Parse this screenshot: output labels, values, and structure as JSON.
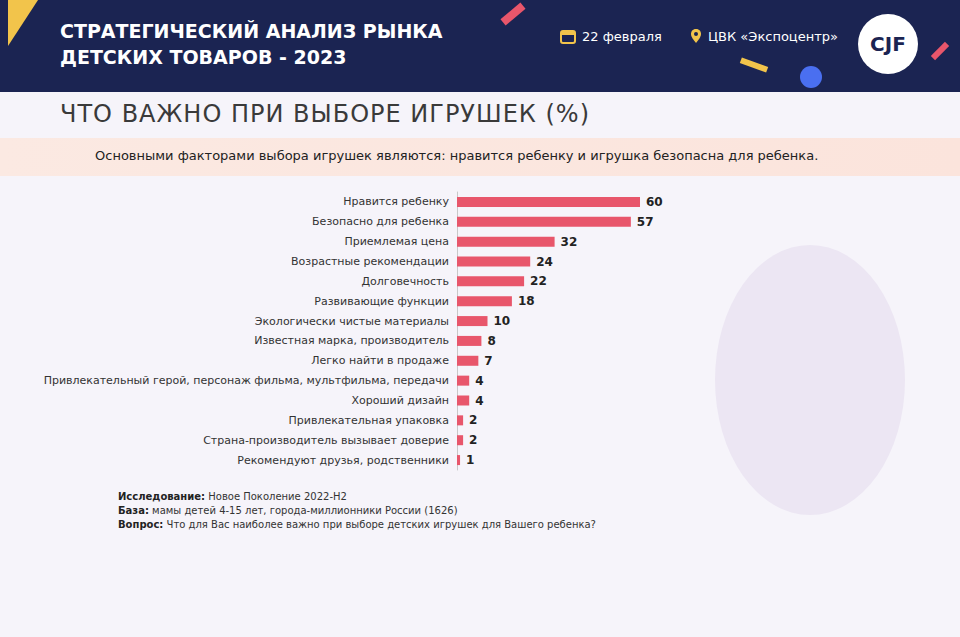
{
  "header": {
    "title": [
      "СТРАТЕГИЧЕСКИЙ АНАЛИЗ РЫНКА",
      "ДЕТСКИХ ТОВАРОВ - 2023"
    ],
    "date": "22 февраля",
    "place": "ЦВК «Экспоцентр»",
    "logo": "CJF"
  },
  "chart_data": {
    "type": "bar",
    "orientation": "horizontal",
    "title": "ЧТО ВАЖНО ПРИ ВЫБОРЕ ИГРУШЕК (%)",
    "subtitle": "Основными факторами выбора игрушек являются: нравится ребенку и игрушка безопасна для ребенка.",
    "categories": [
      "Нравится ребенку",
      "Безопасно для ребенка",
      "Приемлемая цена",
      "Возрастные рекомендации",
      "Долговечность",
      "Развивающие функции",
      "Экологически чистые материалы",
      "Известная марка, производитель",
      "Легко найти в продаже",
      "Привлекательный герой, персонаж фильма, мультфильма, передачи",
      "Хороший дизайн",
      "Привлекательная упаковка",
      "Страна-производитель вызывает доверие",
      "Рекомендуют друзья, родственники"
    ],
    "values": [
      60,
      57,
      32,
      24,
      22,
      18,
      10,
      8,
      7,
      4,
      4,
      2,
      2,
      1
    ],
    "color": "#e8566b",
    "xlim": [
      0,
      60
    ],
    "data_labels": true,
    "tick_labels": "y",
    "grid": false
  },
  "notes": [
    {
      "label": "Исследование:",
      "text": "Новое Поколение 2022-H2"
    },
    {
      "label": "База:",
      "text": "мамы детей 4-15 лет, города-миллионники России (1626)"
    },
    {
      "label": "Вопрос:",
      "text": "Что для Вас наиболее важно при выборе детских игрушек для Вашего ребенка?"
    }
  ]
}
